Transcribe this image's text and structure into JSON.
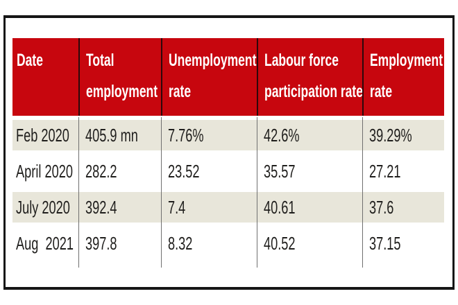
{
  "chart_data": {
    "type": "table",
    "columns": [
      {
        "label": "Date",
        "lines": [
          "Date"
        ]
      },
      {
        "label": "Total employment",
        "lines": [
          "Total",
          "employment"
        ]
      },
      {
        "label": "Unemployment rate",
        "lines": [
          "Unemployment",
          "rate"
        ]
      },
      {
        "label": "Labour force participation rate",
        "lines": [
          "Labour force",
          "participation rate"
        ]
      },
      {
        "label": "Employment rate",
        "lines": [
          "Employment",
          "rate"
        ]
      }
    ],
    "rows": [
      [
        "Feb 2020",
        "405.9 mn",
        "7.76%",
        "42.6%",
        "39.29%"
      ],
      [
        "April 2020",
        "282.2",
        "23.52",
        "35.57",
        "27.21"
      ],
      [
        "July 2020",
        "392.4",
        "7.4",
        "40.61",
        "37.6"
      ],
      [
        "Aug  2021",
        "397.8",
        "8.32",
        "40.52",
        "37.15"
      ]
    ]
  },
  "colors": {
    "header_bg": "#c7060e",
    "header_text": "#ffffff",
    "header_divider": "#2d080b",
    "row_stripe_bg": "#e8e6da",
    "body_divider": "#6f6f6f",
    "frame_border": "#151515",
    "body_text": "#1f1e1c"
  }
}
